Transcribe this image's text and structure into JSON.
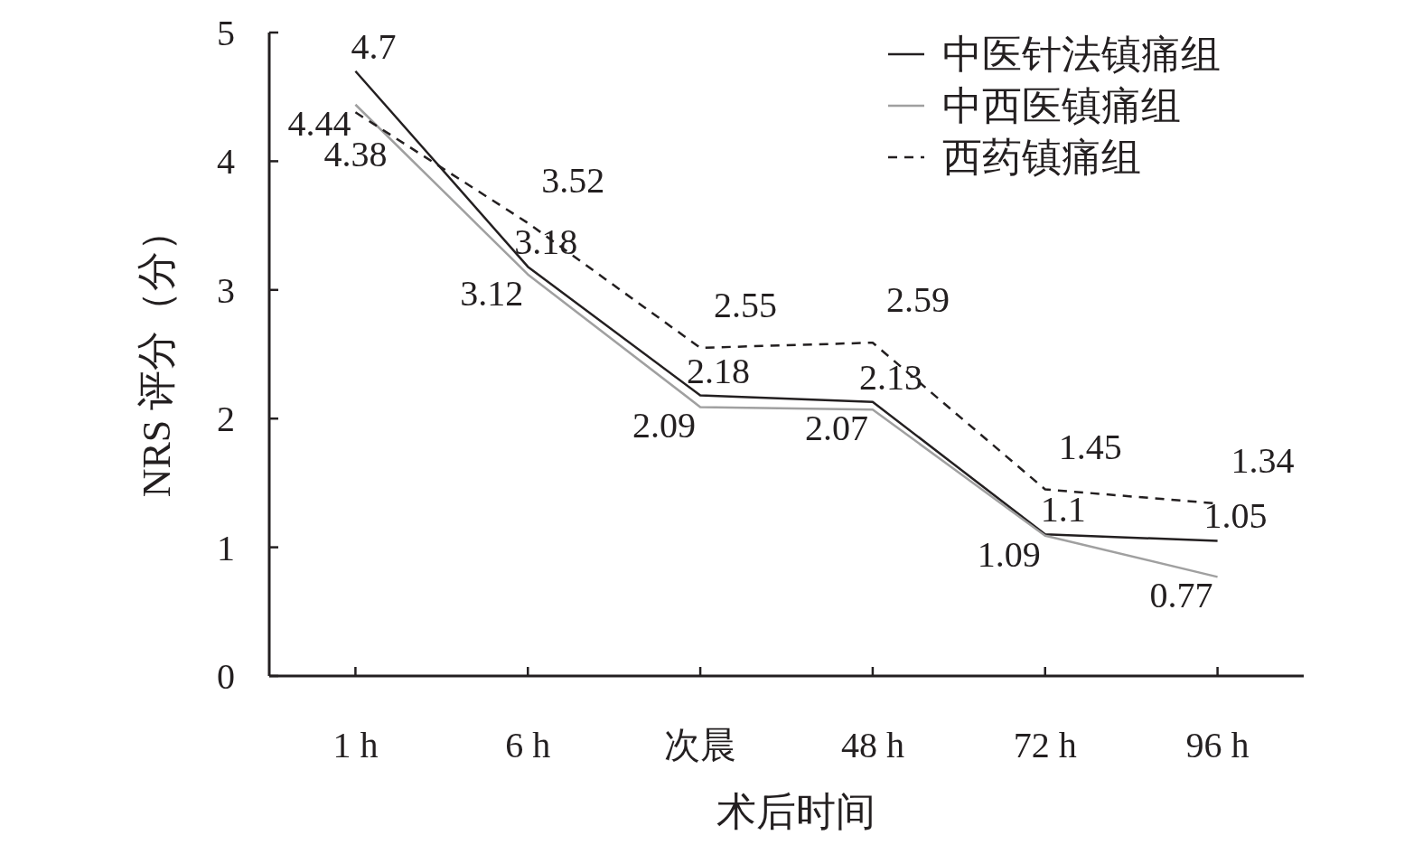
{
  "chart_data": {
    "type": "line",
    "xlabel": "术后时间",
    "ylabel": "NRS 评分（分）",
    "categories": [
      "1 h",
      "6 h",
      "次晨",
      "48 h",
      "72 h",
      "96 h"
    ],
    "series": [
      {
        "name": "中医针法镇痛组",
        "color": "#231f20",
        "line_style": "solid",
        "values": [
          4.7,
          3.18,
          2.18,
          2.13,
          1.1,
          1.05
        ]
      },
      {
        "name": "中西医镇痛组",
        "color": "#a0a0a0",
        "line_style": "solid",
        "values": [
          4.44,
          3.12,
          2.09,
          2.07,
          1.09,
          0.77
        ]
      },
      {
        "name": "西药镇痛组",
        "color": "#231f20",
        "line_style": "dashed",
        "values": [
          4.38,
          3.52,
          2.55,
          2.59,
          1.45,
          1.34
        ]
      }
    ],
    "ylim": [
      0,
      5
    ],
    "yticks": [
      0,
      1,
      2,
      3,
      4,
      5
    ],
    "data_labels": true,
    "legend": "top right",
    "grid": false,
    "marker": "none"
  }
}
